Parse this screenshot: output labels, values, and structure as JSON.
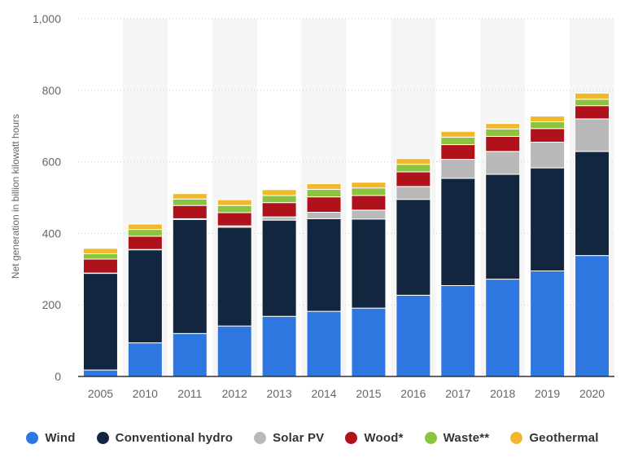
{
  "chart_data": {
    "type": "bar",
    "stacked": true,
    "title": "",
    "xlabel": "",
    "ylabel": "Net generation in billion kilowatt hours",
    "ylim": [
      0,
      1000
    ],
    "yticks": [
      0,
      200,
      400,
      600,
      800,
      1000
    ],
    "ytick_labels": [
      "0",
      "200",
      "400",
      "600",
      "800",
      "1,000"
    ],
    "grid": true,
    "legend_position": "bottom",
    "categories": [
      "2005",
      "2010",
      "2011",
      "2012",
      "2013",
      "2014",
      "2015",
      "2016",
      "2017",
      "2018",
      "2019",
      "2020"
    ],
    "series": [
      {
        "name": "Wind",
        "color": "#2f77e0",
        "values": [
          18,
          94,
          120,
          141,
          168,
          182,
          191,
          227,
          254,
          272,
          295,
          338
        ]
      },
      {
        "name": "Conventional hydro",
        "color": "#12263f",
        "values": [
          270,
          260,
          319,
          276,
          269,
          259,
          249,
          268,
          300,
          293,
          288,
          291
        ]
      },
      {
        "name": "Solar PV",
        "color": "#b9b9b9",
        "values": [
          1,
          1,
          2,
          4,
          9,
          18,
          25,
          36,
          53,
          64,
          72,
          91
        ]
      },
      {
        "name": "Wood*",
        "color": "#b0121b",
        "values": [
          39,
          37,
          37,
          37,
          40,
          43,
          41,
          41,
          41,
          42,
          38,
          37
        ]
      },
      {
        "name": "Waste**",
        "color": "#8cc43f",
        "values": [
          15,
          19,
          18,
          20,
          20,
          21,
          21,
          21,
          21,
          21,
          19,
          18
        ]
      },
      {
        "name": "Geothermal",
        "color": "#f2b82c",
        "values": [
          15,
          15,
          15,
          16,
          16,
          16,
          16,
          16,
          16,
          15,
          16,
          17
        ]
      }
    ]
  }
}
